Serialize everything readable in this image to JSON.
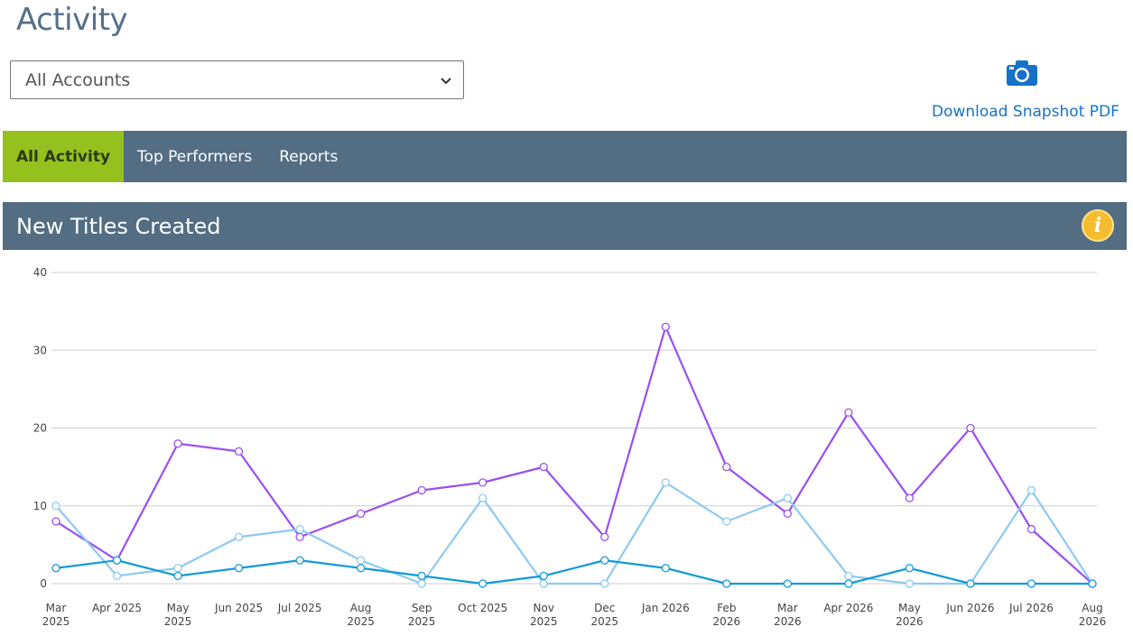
{
  "page": {
    "title": "Activity"
  },
  "account_selector": {
    "selected": "All Accounts"
  },
  "snapshot": {
    "icon": "camera-icon",
    "label": "Download Snapshot PDF"
  },
  "nav": {
    "tabs": [
      {
        "label": "All Activity",
        "active": true
      },
      {
        "label": "Top Performers",
        "active": false
      },
      {
        "label": "Reports",
        "active": false
      }
    ]
  },
  "section": {
    "title": "New Titles Created",
    "info_icon": "info-icon"
  },
  "colors": {
    "accent_green": "#95c11f",
    "nav_bg": "#536d83",
    "link_blue": "#1772c7",
    "series_purple": "#9b4ff0",
    "series_lightblue": "#8ecaf0",
    "series_blue": "#129ad6"
  },
  "chart_data": {
    "type": "line",
    "title": "",
    "xlabel": "",
    "ylabel": "",
    "ylim": [
      0,
      40
    ],
    "yticks": [
      0,
      10,
      20,
      30,
      40
    ],
    "grid": true,
    "categories": [
      [
        "Mar",
        "2025"
      ],
      [
        "Apr 2025"
      ],
      [
        "May",
        "2025"
      ],
      [
        "Jun 2025"
      ],
      [
        "Jul 2025"
      ],
      [
        "Aug",
        "2025"
      ],
      [
        "Sep",
        "2025"
      ],
      [
        "Oct 2025"
      ],
      [
        "Nov",
        "2025"
      ],
      [
        "Dec",
        "2025"
      ],
      [
        "Jan 2026"
      ],
      [
        "Feb",
        "2026"
      ],
      [
        "Mar",
        "2026"
      ],
      [
        "Apr 2026"
      ],
      [
        "May",
        "2026"
      ],
      [
        "Jun 2026"
      ],
      [
        "Jul 2026"
      ],
      [
        "Aug",
        "2026"
      ]
    ],
    "series": [
      {
        "color": "#9b4ff0",
        "values": [
          8,
          3,
          18,
          17,
          6,
          9,
          12,
          13,
          15,
          6,
          33,
          15,
          9,
          22,
          11,
          20,
          7,
          0
        ]
      },
      {
        "color": "#8ecaf0",
        "values": [
          10,
          1,
          2,
          6,
          7,
          3,
          0,
          11,
          0,
          0,
          13,
          8,
          11,
          1,
          0,
          0,
          12,
          0
        ]
      },
      {
        "color": "#129ad6",
        "values": [
          2,
          3,
          1,
          2,
          3,
          2,
          1,
          0,
          1,
          3,
          2,
          0,
          0,
          0,
          2,
          0,
          0,
          0
        ]
      }
    ]
  }
}
